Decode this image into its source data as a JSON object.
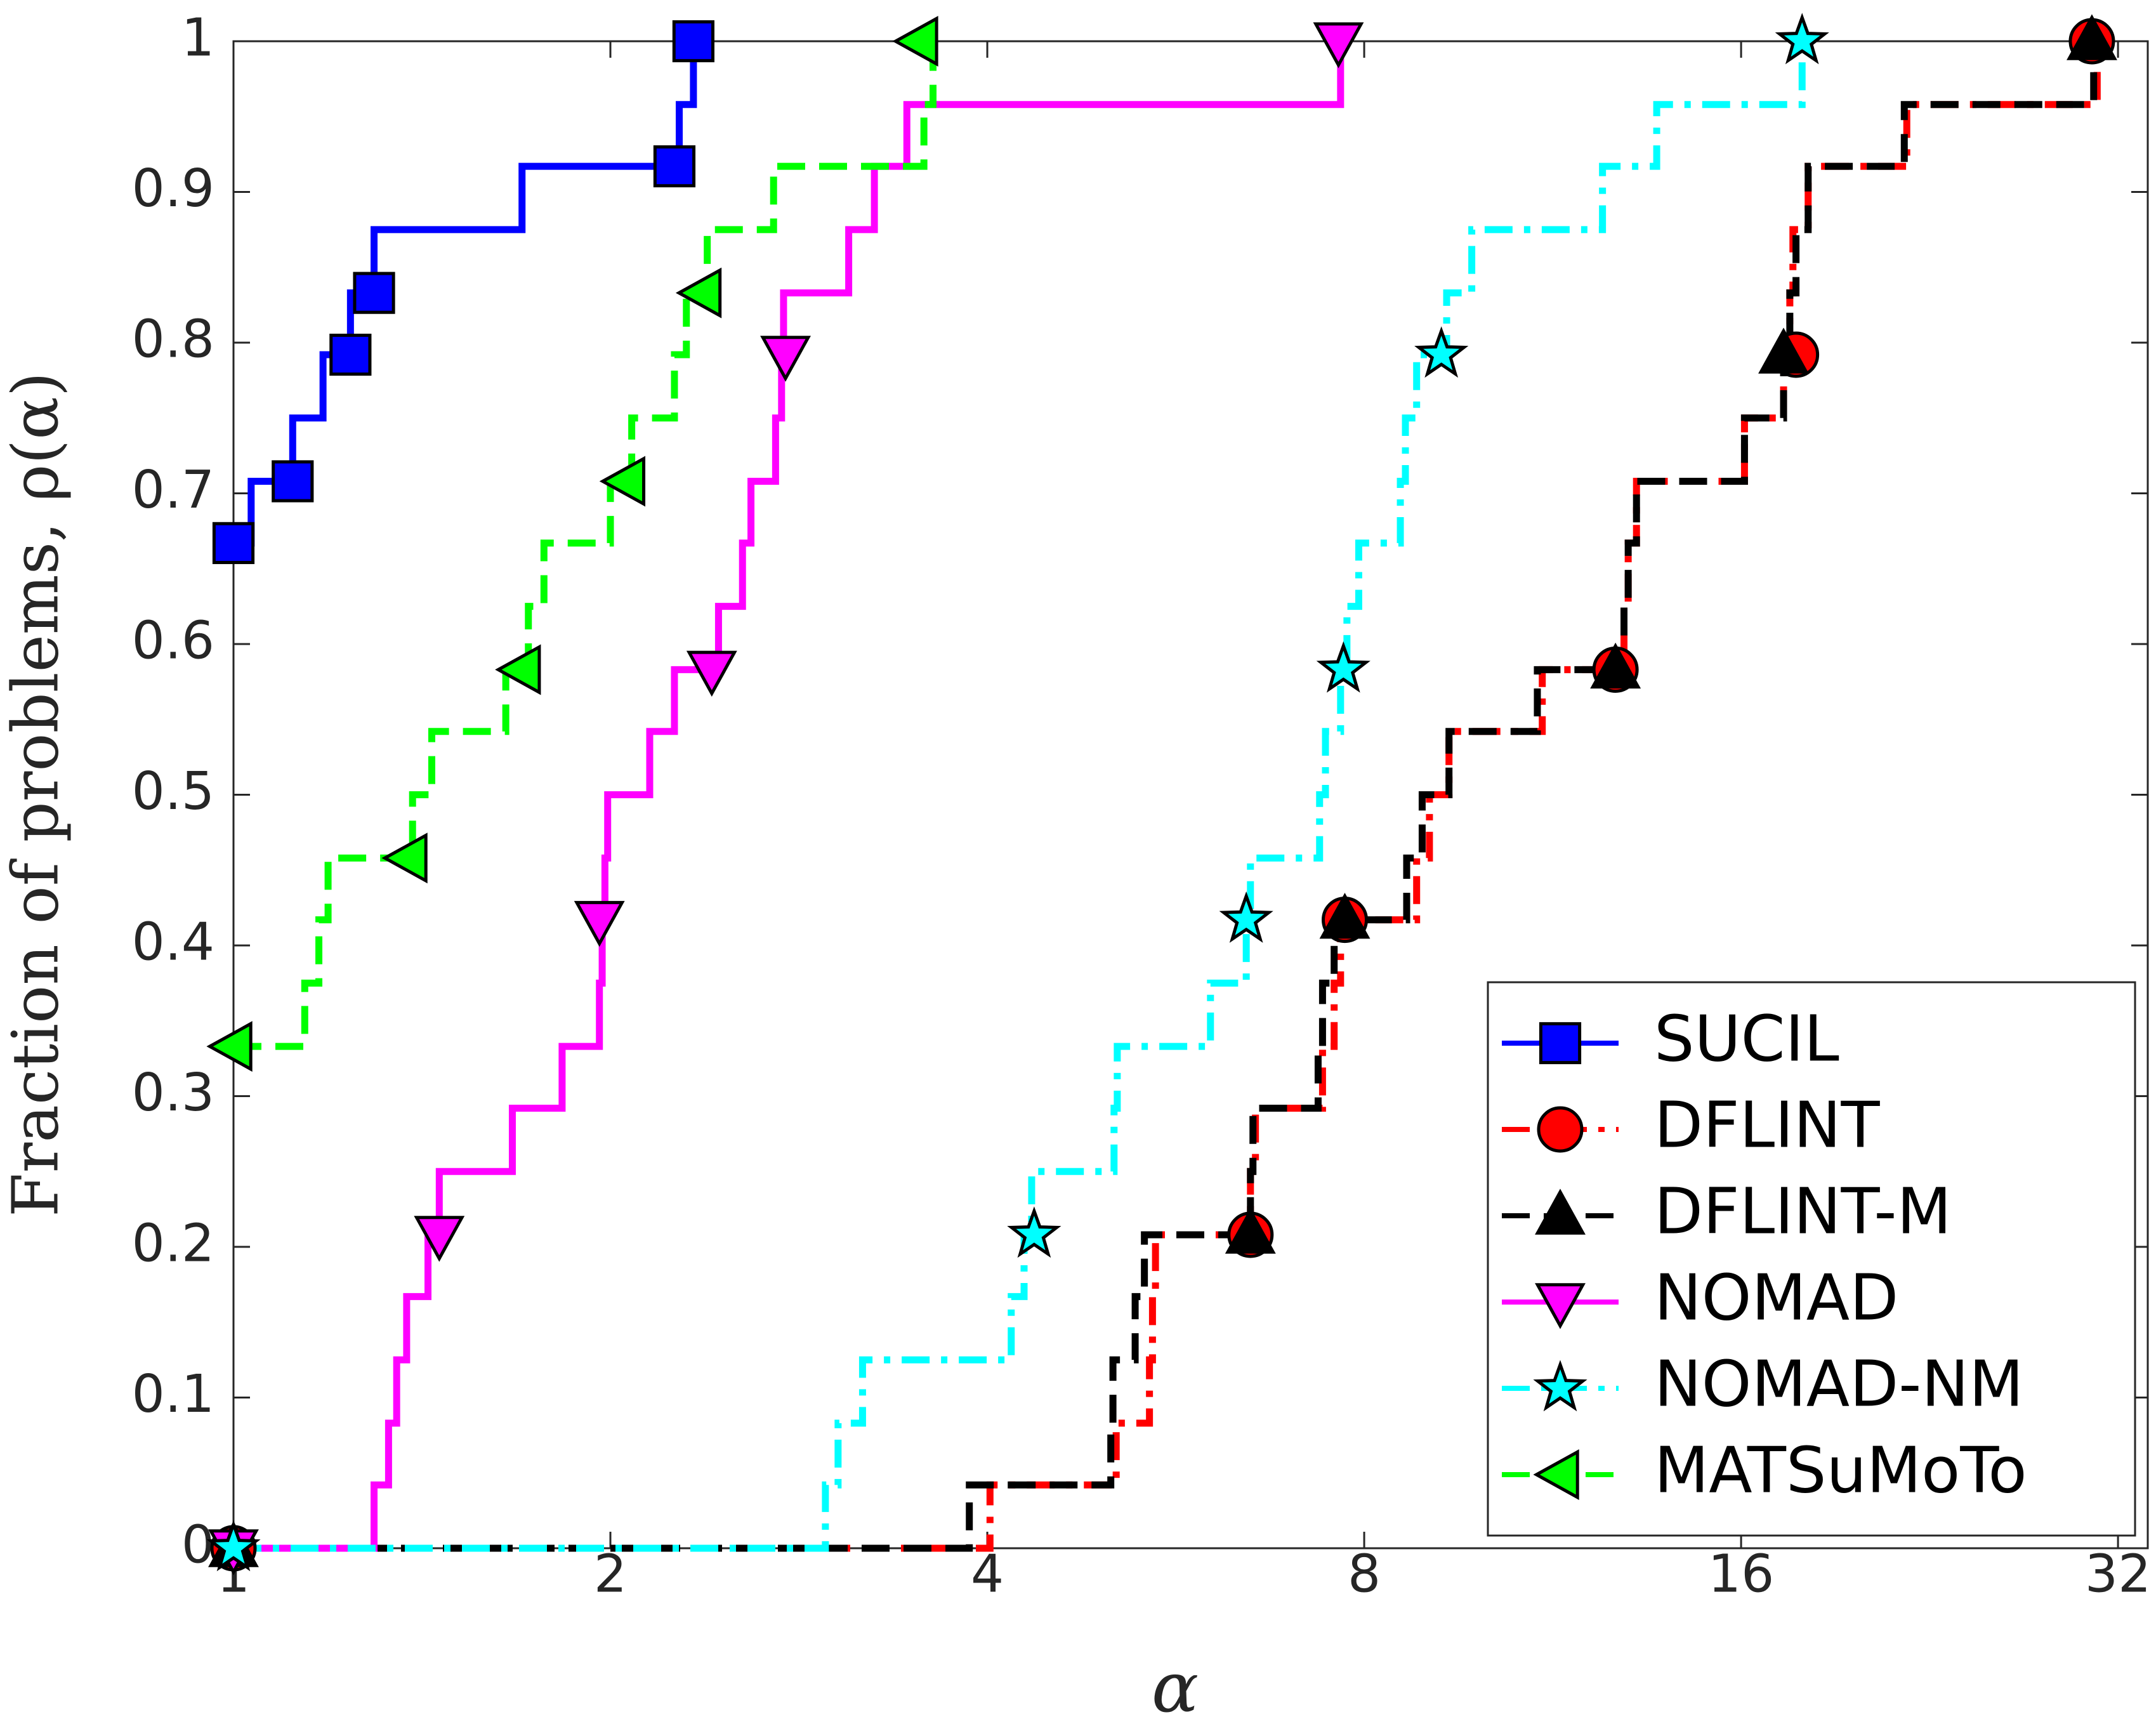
{
  "chart_data": {
    "type": "step",
    "x_label": "α",
    "y_label": "Fraction of problems, ρ(α)",
    "xscale": "log2",
    "xlim": [
      1,
      33.8
    ],
    "ylim": [
      0,
      1
    ],
    "xticks": [
      1,
      2,
      4,
      8,
      16,
      32
    ],
    "yticks": [
      0,
      0.1,
      0.2,
      0.3,
      0.4,
      0.5,
      0.6,
      0.7,
      0.8,
      0.9,
      1
    ],
    "legend_position": "lower right",
    "series": [
      {
        "name": "SUCIL",
        "color": "#0000ff",
        "marker": "square",
        "linestyle": "solid",
        "x": [
          1,
          1.033,
          1.115,
          1.179,
          1.24,
          1.295,
          1.7,
          2.27,
          2.33
        ],
        "values": [
          0.667,
          0.708,
          0.75,
          0.792,
          0.833,
          0.875,
          0.917,
          0.958,
          1.0
        ],
        "marker_x": [
          1,
          1.115,
          1.24,
          1.295,
          2.25,
          2.33
        ],
        "marker_values": [
          0.667,
          0.708,
          0.792,
          0.833,
          0.917,
          1.0
        ]
      },
      {
        "name": "DFLINT",
        "color": "#ff0000",
        "marker": "circle",
        "linestyle": "dashdot",
        "x": [
          1,
          4.02,
          5.07,
          5.39,
          5.42,
          5.45,
          6.49,
          6.55,
          7.41,
          7.57,
          7.66,
          8.81,
          9.02,
          9.35,
          11.1,
          12.9,
          13.0,
          13.2,
          16.1,
          17.3,
          17.5,
          17.6,
          18.1,
          21.7,
          30.8
        ],
        "values": [
          0,
          0.042,
          0.083,
          0.125,
          0.167,
          0.208,
          0.25,
          0.292,
          0.333,
          0.375,
          0.417,
          0.458,
          0.5,
          0.542,
          0.583,
          0.625,
          0.667,
          0.708,
          0.75,
          0.792,
          0.833,
          0.875,
          0.917,
          0.958,
          1.0
        ],
        "marker_x": [
          1,
          6.49,
          7.72,
          12.7,
          17.7,
          30.5
        ],
        "marker_values": [
          0,
          0.208,
          0.417,
          0.583,
          0.792,
          1.0
        ]
      },
      {
        "name": "DFLINT-M",
        "color": "#000000",
        "marker": "triangle-up",
        "linestyle": "dash",
        "x": [
          1,
          3.87,
          5.02,
          5.04,
          5.25,
          5.34,
          6.49,
          6.52,
          7.35,
          7.41,
          7.57,
          8.65,
          8.9,
          9.35,
          11.0,
          12.9,
          13.0,
          13.2,
          16.1,
          17.3,
          17.5,
          17.7,
          18.1,
          21.6,
          30.6
        ],
        "values": [
          0,
          0.042,
          0.083,
          0.125,
          0.167,
          0.208,
          0.25,
          0.292,
          0.333,
          0.375,
          0.417,
          0.458,
          0.5,
          0.542,
          0.583,
          0.625,
          0.667,
          0.708,
          0.75,
          0.792,
          0.833,
          0.875,
          0.917,
          0.958,
          1.0
        ],
        "marker_x": [
          1,
          6.49,
          7.72,
          12.7,
          17.3,
          30.5
        ],
        "marker_values": [
          0,
          0.208,
          0.417,
          0.583,
          0.792,
          1.0
        ]
      },
      {
        "name": "NOMAD",
        "color": "#ff00ff",
        "marker": "triangle-down",
        "linestyle": "solid",
        "x": [
          1,
          1.295,
          1.33,
          1.35,
          1.375,
          1.43,
          1.46,
          1.67,
          1.83,
          1.96,
          1.97,
          1.98,
          1.99,
          2.15,
          2.25,
          2.44,
          2.55,
          2.59,
          2.71,
          2.74,
          2.75,
          3.1,
          3.25,
          3.45,
          7.66
        ],
        "values": [
          0,
          0.042,
          0.083,
          0.125,
          0.167,
          0.208,
          0.25,
          0.292,
          0.333,
          0.375,
          0.417,
          0.458,
          0.5,
          0.542,
          0.583,
          0.625,
          0.667,
          0.708,
          0.75,
          0.792,
          0.833,
          0.875,
          0.917,
          0.958,
          1.0
        ],
        "marker_x": [
          1,
          1.46,
          1.96,
          2.41,
          2.76,
          7.63
        ],
        "marker_values": [
          0,
          0.208,
          0.417,
          0.583,
          0.792,
          1.0
        ]
      },
      {
        "name": "NOMAD-NM",
        "color": "#00ffff",
        "marker": "star",
        "linestyle": "dashdot",
        "x": [
          1,
          2.97,
          3.04,
          3.18,
          4.18,
          4.28,
          4.34,
          5.05,
          5.08,
          6.03,
          6.44,
          6.49,
          7.37,
          7.45,
          7.66,
          7.75,
          7.92,
          8.55,
          8.63,
          8.81,
          9.31,
          9.75,
          12.4,
          13.7,
          17.9
        ],
        "values": [
          0,
          0.042,
          0.083,
          0.125,
          0.167,
          0.208,
          0.25,
          0.292,
          0.333,
          0.375,
          0.417,
          0.458,
          0.5,
          0.542,
          0.583,
          0.625,
          0.667,
          0.708,
          0.75,
          0.792,
          0.833,
          0.875,
          0.917,
          0.958,
          1.0
        ],
        "marker_x": [
          1,
          4.36,
          6.44,
          7.7,
          9.22,
          17.9
        ],
        "marker_values": [
          0,
          0.208,
          0.417,
          0.583,
          0.792,
          1.0
        ]
      },
      {
        "name": "MATSuMoTo",
        "color": "#00ff00",
        "marker": "triangle-left",
        "linestyle": "dash",
        "x": [
          1,
          1.14,
          1.17,
          1.19,
          1.39,
          1.44,
          1.65,
          1.72,
          1.77,
          2.0,
          2.08,
          2.25,
          2.3,
          2.39,
          2.7,
          3.56,
          3.62
        ],
        "values": [
          0.333,
          0.375,
          0.417,
          0.458,
          0.5,
          0.542,
          0.583,
          0.625,
          0.667,
          0.708,
          0.75,
          0.792,
          0.833,
          0.875,
          0.917,
          0.958,
          1.0
        ],
        "marker_x": [
          1,
          1.38,
          1.7,
          2.06,
          2.37,
          3.53
        ],
        "marker_values": [
          0.333,
          0.458,
          0.583,
          0.708,
          0.833,
          1.0
        ]
      }
    ]
  }
}
